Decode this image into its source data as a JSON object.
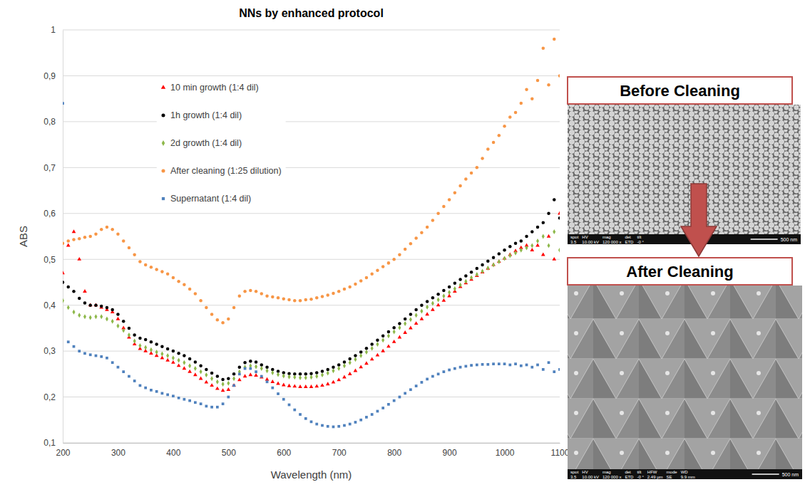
{
  "chart_data": {
    "type": "scatter",
    "title": "NNs by enhanced protocol",
    "x_label": "Wavelength (nm)",
    "y_label": "ABS",
    "xlim": [
      200,
      1100
    ],
    "xticks": [
      200,
      300,
      400,
      500,
      600,
      700,
      800,
      900,
      1000,
      1100
    ],
    "ylim": [
      0.1,
      1
    ],
    "yticks": [
      {
        "value": 0.1,
        "label": "0,1"
      },
      {
        "value": 0.2,
        "label": "0,2"
      },
      {
        "value": 0.3,
        "label": "0,3"
      },
      {
        "value": 0.4,
        "label": "0,4"
      },
      {
        "value": 0.5,
        "label": "0,5"
      },
      {
        "value": 0.6,
        "label": "0,6"
      },
      {
        "value": 0.7,
        "label": "0,7"
      },
      {
        "value": 0.8,
        "label": "0,8"
      },
      {
        "value": 0.9,
        "label": "0,9"
      },
      1
    ],
    "grid": true,
    "legend": "top-left",
    "x": [
      200,
      210,
      220,
      230,
      240,
      250,
      260,
      270,
      280,
      290,
      300,
      310,
      320,
      330,
      340,
      350,
      360,
      370,
      380,
      390,
      400,
      410,
      420,
      430,
      440,
      450,
      460,
      470,
      480,
      490,
      500,
      510,
      520,
      530,
      540,
      550,
      560,
      570,
      580,
      590,
      600,
      610,
      620,
      630,
      640,
      650,
      660,
      670,
      680,
      690,
      700,
      710,
      720,
      730,
      740,
      750,
      760,
      770,
      780,
      790,
      800,
      810,
      820,
      830,
      840,
      850,
      860,
      870,
      880,
      890,
      900,
      910,
      920,
      930,
      940,
      950,
      960,
      970,
      980,
      990,
      1000,
      1010,
      1020,
      1030,
      1040,
      1050,
      1060,
      1070,
      1080,
      1090,
      1100
    ],
    "series": [
      {
        "name": "10 min growth (1:4 dil)",
        "color": "#ff0000",
        "marker": "triangle",
        "values": [
          0.47,
          0.53,
          0.56,
          0.5,
          0.43,
          0.4,
          0.4,
          0.395,
          0.39,
          0.385,
          0.37,
          0.35,
          0.33,
          0.315,
          0.305,
          0.3,
          0.295,
          0.29,
          0.285,
          0.28,
          0.275,
          0.268,
          0.262,
          0.255,
          0.248,
          0.24,
          0.232,
          0.225,
          0.218,
          0.214,
          0.216,
          0.225,
          0.237,
          0.245,
          0.248,
          0.247,
          0.243,
          0.238,
          0.233,
          0.229,
          0.226,
          0.224,
          0.223,
          0.222,
          0.222,
          0.222,
          0.223,
          0.225,
          0.228,
          0.232,
          0.237,
          0.243,
          0.25,
          0.257,
          0.265,
          0.273,
          0.282,
          0.291,
          0.3,
          0.31,
          0.32,
          0.33,
          0.34,
          0.35,
          0.36,
          0.37,
          0.38,
          0.39,
          0.4,
          0.41,
          0.42,
          0.43,
          0.44,
          0.448,
          0.456,
          0.464,
          0.472,
          0.48,
          0.488,
          0.495,
          0.502,
          0.51,
          0.518,
          0.525,
          0.53,
          0.52,
          0.53,
          0.51,
          0.55,
          0.5,
          0.6
        ]
      },
      {
        "name": "1h growth (1:4 dil)",
        "color": "#000000",
        "marker": "circle",
        "values": [
          0.45,
          0.44,
          0.43,
          0.415,
          0.405,
          0.4,
          0.4,
          0.398,
          0.395,
          0.39,
          0.38,
          0.365,
          0.35,
          0.335,
          0.328,
          0.325,
          0.32,
          0.315,
          0.31,
          0.305,
          0.3,
          0.295,
          0.29,
          0.283,
          0.276,
          0.268,
          0.26,
          0.252,
          0.245,
          0.238,
          0.24,
          0.25,
          0.265,
          0.275,
          0.278,
          0.276,
          0.27,
          0.265,
          0.26,
          0.256,
          0.253,
          0.251,
          0.25,
          0.25,
          0.25,
          0.251,
          0.253,
          0.256,
          0.26,
          0.265,
          0.27,
          0.276,
          0.283,
          0.29,
          0.298,
          0.306,
          0.315,
          0.324,
          0.333,
          0.342,
          0.351,
          0.36,
          0.37,
          0.38,
          0.39,
          0.4,
          0.408,
          0.416,
          0.424,
          0.432,
          0.44,
          0.448,
          0.456,
          0.464,
          0.472,
          0.48,
          0.488,
          0.496,
          0.504,
          0.512,
          0.52,
          0.528,
          0.535,
          0.54,
          0.55,
          0.56,
          0.57,
          0.58,
          0.6,
          0.63,
          0.59
        ]
      },
      {
        "name": "2d growth (1:4 dil)",
        "color": "#8db84a",
        "marker": "diamond",
        "values": [
          0.41,
          0.395,
          0.385,
          0.378,
          0.375,
          0.373,
          0.375,
          0.375,
          0.37,
          0.365,
          0.355,
          0.345,
          0.335,
          0.322,
          0.312,
          0.308,
          0.303,
          0.298,
          0.294,
          0.29,
          0.285,
          0.28,
          0.275,
          0.268,
          0.262,
          0.255,
          0.248,
          0.24,
          0.233,
          0.228,
          0.23,
          0.24,
          0.255,
          0.265,
          0.268,
          0.266,
          0.262,
          0.257,
          0.253,
          0.249,
          0.246,
          0.244,
          0.243,
          0.242,
          0.242,
          0.243,
          0.245,
          0.248,
          0.252,
          0.257,
          0.262,
          0.268,
          0.275,
          0.282,
          0.29,
          0.298,
          0.306,
          0.315,
          0.324,
          0.333,
          0.342,
          0.351,
          0.36,
          0.369,
          0.378,
          0.387,
          0.396,
          0.404,
          0.412,
          0.42,
          0.428,
          0.436,
          0.444,
          0.452,
          0.46,
          0.467,
          0.474,
          0.481,
          0.488,
          0.495,
          0.502,
          0.508,
          0.514,
          0.52,
          0.525,
          0.53,
          0.54,
          0.55,
          0.53,
          0.56,
          0.52
        ]
      },
      {
        "name": "After cleaning (1:25 dilution)",
        "color": "#f79646",
        "marker": "circle",
        "values": [
          0.535,
          0.54,
          0.543,
          0.545,
          0.548,
          0.55,
          0.555,
          0.565,
          0.57,
          0.565,
          0.555,
          0.54,
          0.525,
          0.51,
          0.495,
          0.488,
          0.483,
          0.478,
          0.473,
          0.468,
          0.46,
          0.452,
          0.445,
          0.435,
          0.425,
          0.41,
          0.395,
          0.38,
          0.368,
          0.362,
          0.37,
          0.395,
          0.42,
          0.43,
          0.432,
          0.43,
          0.425,
          0.42,
          0.418,
          0.416,
          0.414,
          0.412,
          0.41,
          0.41,
          0.412,
          0.413,
          0.416,
          0.419,
          0.422,
          0.426,
          0.43,
          0.435,
          0.44,
          0.446,
          0.453,
          0.46,
          0.468,
          0.476,
          0.484,
          0.492,
          0.5,
          0.51,
          0.522,
          0.534,
          0.546,
          0.558,
          0.57,
          0.585,
          0.6,
          0.615,
          0.63,
          0.645,
          0.66,
          0.675,
          0.688,
          0.7,
          0.72,
          0.74,
          0.755,
          0.77,
          0.79,
          0.81,
          0.82,
          0.84,
          0.87,
          0.85,
          0.89,
          0.96,
          0.88,
          0.98,
          0.9
        ]
      },
      {
        "name": "Supernatant (1:4 dil)",
        "color": "#4f81bd",
        "marker": "square",
        "values": [
          0.84,
          0.32,
          0.31,
          0.3,
          0.295,
          0.292,
          0.29,
          0.288,
          0.285,
          0.275,
          0.265,
          0.255,
          0.245,
          0.235,
          0.225,
          0.22,
          0.215,
          0.212,
          0.208,
          0.205,
          0.202,
          0.198,
          0.195,
          0.192,
          0.188,
          0.185,
          0.18,
          0.178,
          0.178,
          0.185,
          0.2,
          0.225,
          0.25,
          0.262,
          0.262,
          0.255,
          0.245,
          0.233,
          0.22,
          0.207,
          0.195,
          0.183,
          0.172,
          0.162,
          0.153,
          0.146,
          0.141,
          0.138,
          0.136,
          0.135,
          0.136,
          0.138,
          0.141,
          0.145,
          0.15,
          0.156,
          0.162,
          0.169,
          0.176,
          0.184,
          0.192,
          0.2,
          0.208,
          0.216,
          0.224,
          0.232,
          0.239,
          0.245,
          0.25,
          0.255,
          0.259,
          0.262,
          0.265,
          0.267,
          0.269,
          0.27,
          0.271,
          0.271,
          0.272,
          0.272,
          0.272,
          0.27,
          0.272,
          0.268,
          0.27,
          0.265,
          0.27,
          0.26,
          0.275,
          0.255,
          0.26
        ]
      }
    ]
  },
  "images": [
    {
      "title": "Before Cleaning",
      "info": [
        {
          "label": "spot",
          "value": "3.5"
        },
        {
          "label": "HV",
          "value": "10.00 kV"
        },
        {
          "label": "mag",
          "value": "120 000 x"
        },
        {
          "label": "det",
          "value": "ETD"
        },
        {
          "label": "tilt",
          "value": "-0 °"
        }
      ],
      "scale": "500 nm"
    },
    {
      "title": "After Cleaning",
      "info": [
        {
          "label": "spot",
          "value": "3.5"
        },
        {
          "label": "HV",
          "value": "10.00 kV"
        },
        {
          "label": "mag",
          "value": "120 000 x"
        },
        {
          "label": "det",
          "value": "ETD"
        },
        {
          "label": "tilt",
          "value": "-0 °"
        },
        {
          "label": "HFW",
          "value": "2.49 µm"
        },
        {
          "label": "mode",
          "value": "SE"
        },
        {
          "label": "WD",
          "value": "9.9 mm"
        }
      ],
      "scale": "500 nm"
    }
  ]
}
